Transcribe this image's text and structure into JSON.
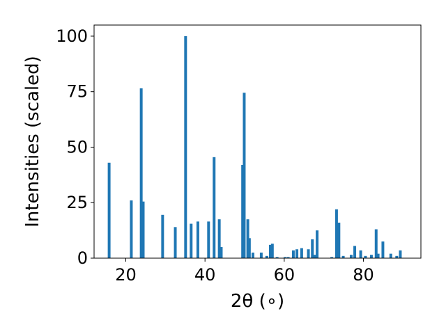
{
  "chart_data": {
    "type": "bar",
    "title": "",
    "xlabel": "2θ (∘)",
    "ylabel": "Intensities (scaled)",
    "xlim": [
      12,
      94.5
    ],
    "ylim": [
      0,
      105
    ],
    "xticks": [
      20,
      40,
      60,
      80
    ],
    "yticks": [
      0,
      25,
      50,
      75,
      100
    ],
    "bar_width_deg": 0.7,
    "grid": false,
    "legend": "none",
    "bar_color": "#1f77b4",
    "x": [
      15.8,
      21.4,
      23.9,
      24.4,
      29.3,
      32.5,
      35.1,
      36.5,
      38.2,
      40.9,
      42.3,
      43.6,
      44.1,
      49.5,
      49.9,
      50.8,
      51.2,
      52.1,
      54.2,
      55.6,
      56.5,
      57.0,
      58.2,
      60.2,
      61.0,
      62.3,
      63.2,
      64.4,
      66.1,
      67.1,
      67.7,
      68.3,
      72.0,
      73.2,
      73.8,
      74.9,
      76.9,
      77.8,
      79.3,
      80.5,
      82.0,
      83.2,
      83.7,
      84.9,
      86.9,
      88.4,
      89.3
    ],
    "values": [
      43,
      26,
      76.5,
      25.5,
      19.5,
      14,
      100,
      15.5,
      16.5,
      16.5,
      45.5,
      17.5,
      5,
      42,
      74.5,
      17.5,
      9,
      2.5,
      2.5,
      1,
      6,
      6.5,
      0.5,
      0.5,
      0.5,
      3.5,
      4,
      4.5,
      4,
      8.5,
      1.5,
      12.5,
      0.5,
      22,
      16,
      1,
      1.5,
      5.5,
      3.5,
      1,
      1.5,
      13,
      2,
      7.5,
      2,
      1,
      3.5
    ]
  }
}
